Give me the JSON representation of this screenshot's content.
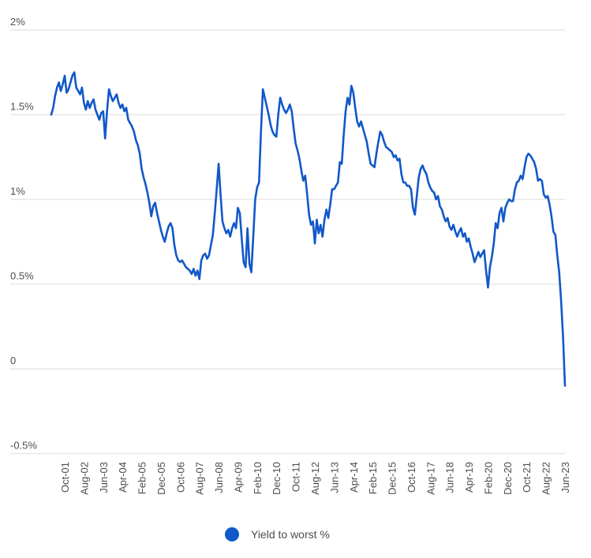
{
  "chart_data": {
    "type": "line",
    "title": "",
    "grid": true,
    "legend_position": "bottom",
    "colors": {
      "series": "#1158c9",
      "gridline": "#e7e7e7",
      "axis_text": "#4d4d4d",
      "background": "#ffffff"
    },
    "y_axis": {
      "tick_labels": [
        "2%",
        "1.5%",
        "1%",
        "0.5%",
        "0",
        "-0.5%"
      ],
      "tick_values": [
        2,
        1.5,
        1,
        0.5,
        0,
        -0.5
      ],
      "ylim": [
        -0.5,
        2
      ]
    },
    "x_axis": {
      "tick_labels": [
        "Oct-01",
        "Aug-02",
        "Jun-03",
        "Apr-04",
        "Feb-05",
        "Dec-05",
        "Oct-06",
        "Aug-07",
        "Jun-08",
        "Apr-09",
        "Feb-10",
        "Dec-10",
        "Oct-11",
        "Aug-12",
        "Jun-13",
        "Apr-14",
        "Feb-15",
        "Dec-15",
        "Oct-16",
        "Aug-17",
        "Jun-18",
        "Apr-19",
        "Feb-20",
        "Dec-20",
        "Oct-21",
        "Aug-22",
        "Jun-23"
      ],
      "tick_interval_months": 10
    },
    "series": [
      {
        "name": "Yield to worst %",
        "color": "#1158c9",
        "x_start": "Mar-01",
        "x_interval": "monthly",
        "values": [
          1.5,
          1.54,
          1.61,
          1.66,
          1.69,
          1.64,
          1.68,
          1.73,
          1.63,
          1.65,
          1.69,
          1.73,
          1.75,
          1.66,
          1.64,
          1.62,
          1.66,
          1.57,
          1.53,
          1.58,
          1.54,
          1.57,
          1.59,
          1.53,
          1.5,
          1.47,
          1.51,
          1.52,
          1.36,
          1.52,
          1.65,
          1.61,
          1.58,
          1.6,
          1.62,
          1.57,
          1.54,
          1.56,
          1.52,
          1.54,
          1.47,
          1.45,
          1.43,
          1.4,
          1.35,
          1.32,
          1.27,
          1.18,
          1.13,
          1.09,
          1.04,
          0.98,
          0.9,
          0.96,
          0.98,
          0.92,
          0.87,
          0.82,
          0.78,
          0.75,
          0.8,
          0.84,
          0.86,
          0.83,
          0.73,
          0.67,
          0.64,
          0.63,
          0.64,
          0.62,
          0.6,
          0.59,
          0.58,
          0.56,
          0.59,
          0.55,
          0.58,
          0.53,
          0.64,
          0.67,
          0.68,
          0.65,
          0.67,
          0.73,
          0.79,
          0.92,
          1.06,
          1.21,
          1.03,
          0.87,
          0.83,
          0.8,
          0.82,
          0.78,
          0.83,
          0.86,
          0.83,
          0.95,
          0.92,
          0.77,
          0.63,
          0.6,
          0.83,
          0.62,
          0.57,
          0.78,
          1.0,
          1.07,
          1.1,
          1.4,
          1.65,
          1.6,
          1.55,
          1.5,
          1.44,
          1.4,
          1.38,
          1.37,
          1.5,
          1.6,
          1.56,
          1.53,
          1.51,
          1.53,
          1.56,
          1.52,
          1.42,
          1.33,
          1.29,
          1.24,
          1.17,
          1.11,
          1.14,
          1.03,
          0.91,
          0.85,
          0.87,
          0.74,
          0.88,
          0.8,
          0.85,
          0.78,
          0.88,
          0.94,
          0.89,
          0.97,
          1.06,
          1.06,
          1.08,
          1.1,
          1.22,
          1.21,
          1.38,
          1.52,
          1.6,
          1.56,
          1.67,
          1.63,
          1.54,
          1.46,
          1.43,
          1.46,
          1.42,
          1.38,
          1.34,
          1.27,
          1.21,
          1.2,
          1.19,
          1.27,
          1.34,
          1.4,
          1.38,
          1.34,
          1.31,
          1.3,
          1.29,
          1.28,
          1.25,
          1.26,
          1.23,
          1.24,
          1.15,
          1.1,
          1.1,
          1.08,
          1.08,
          1.06,
          0.95,
          0.91,
          1.02,
          1.13,
          1.18,
          1.2,
          1.17,
          1.15,
          1.1,
          1.07,
          1.05,
          1.04,
          1.0,
          1.02,
          0.96,
          0.94,
          0.9,
          0.87,
          0.89,
          0.84,
          0.82,
          0.85,
          0.81,
          0.78,
          0.81,
          0.83,
          0.78,
          0.8,
          0.75,
          0.77,
          0.72,
          0.68,
          0.63,
          0.66,
          0.69,
          0.66,
          0.68,
          0.7,
          0.58,
          0.48,
          0.6,
          0.66,
          0.74,
          0.86,
          0.83,
          0.92,
          0.95,
          0.87,
          0.95,
          0.98,
          1.0,
          0.99,
          0.99,
          1.06,
          1.1,
          1.11,
          1.14,
          1.12,
          1.19,
          1.25,
          1.27,
          1.26,
          1.24,
          1.22,
          1.18,
          1.11,
          1.12,
          1.11,
          1.03,
          1.01,
          1.02,
          0.97,
          0.9,
          0.81,
          0.79,
          0.67,
          0.57,
          0.4,
          0.19,
          -0.1
        ]
      }
    ],
    "legend": [
      {
        "label": "Yield to worst %",
        "color": "#1158c9"
      }
    ]
  }
}
